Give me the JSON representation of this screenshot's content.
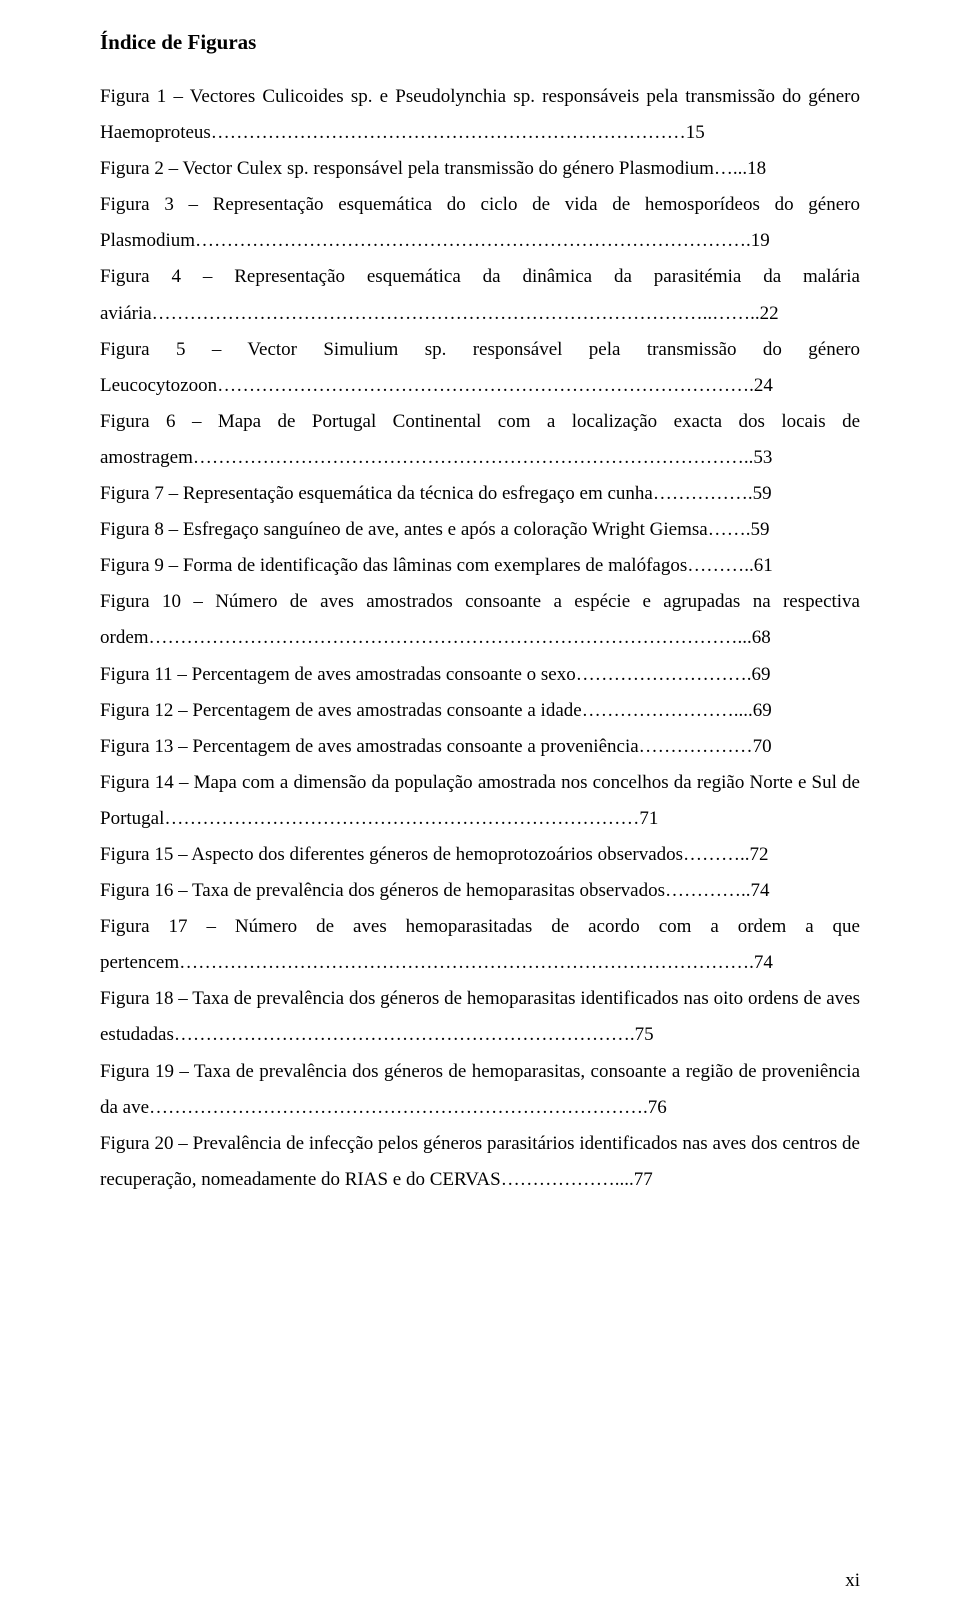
{
  "title": "Índice de Figuras",
  "entries": [
    "Figura 1 – Vectores Culicoides sp. e Pseudolynchia sp. responsáveis pela transmissão do género Haemoproteus…………………………………………………………………15",
    "Figura 2 – Vector Culex sp. responsável pela transmissão do género Plasmodium…...18",
    "Figura 3 – Representação esquemática do ciclo de vida de hemosporídeos do género Plasmodium…………………………………………………………………………….19",
    "Figura 4 – Representação esquemática da dinâmica da parasitémia da malária aviária……………………………………………………………………………..……..22",
    "Figura 5 – Vector Simulium sp. responsável pela transmissão do género Leucocytozoon………………………………………………………………………….24",
    "Figura 6 – Mapa de Portugal Continental com a localização exacta dos locais de amostragem……………………………………………………………………………..53",
    "Figura 7 – Representação esquemática da técnica do esfregaço em cunha…………….59",
    "Figura 8 – Esfregaço sanguíneo de ave, antes e após a coloração Wright Giemsa…….59",
    "Figura 9 – Forma de identificação das lâminas com exemplares de malófagos………..61",
    "Figura 10 – Número de aves amostrados consoante a espécie e agrupadas na respectiva ordem…………………………………………………………………………………...68",
    "Figura 11 – Percentagem de aves amostradas consoante o sexo……………………….69",
    "Figura 12 – Percentagem de aves amostradas consoante a idade……………………....69",
    "Figura 13 – Percentagem de aves amostradas consoante a proveniência………………70",
    "Figura 14 – Mapa com a dimensão da população amostrada nos concelhos da região Norte e Sul de Portugal…………………………………………………………………71",
    "Figura 15 – Aspecto dos diferentes géneros de hemoprotozoários observados………..72",
    "Figura 16 – Taxa de prevalência dos géneros de hemoparasitas observados…………..74",
    "Figura 17 – Número de aves hemoparasitadas de acordo com a ordem a que pertencem……………………………………………………………………………….74",
    "Figura 18 – Taxa de prevalência dos géneros de hemoparasitas identificados nas oito ordens de aves estudadas……………………………………………………………….75",
    "Figura 19 – Taxa de prevalência dos géneros de hemoparasitas, consoante a região de proveniência da ave…………………………………………………………………….76",
    "Figura 20 – Prevalência de infecção pelos géneros parasitários identificados nas aves dos centros de recuperação, nomeadamente do RIAS e do CERVAS………………....77"
  ],
  "page_number": "xi"
}
